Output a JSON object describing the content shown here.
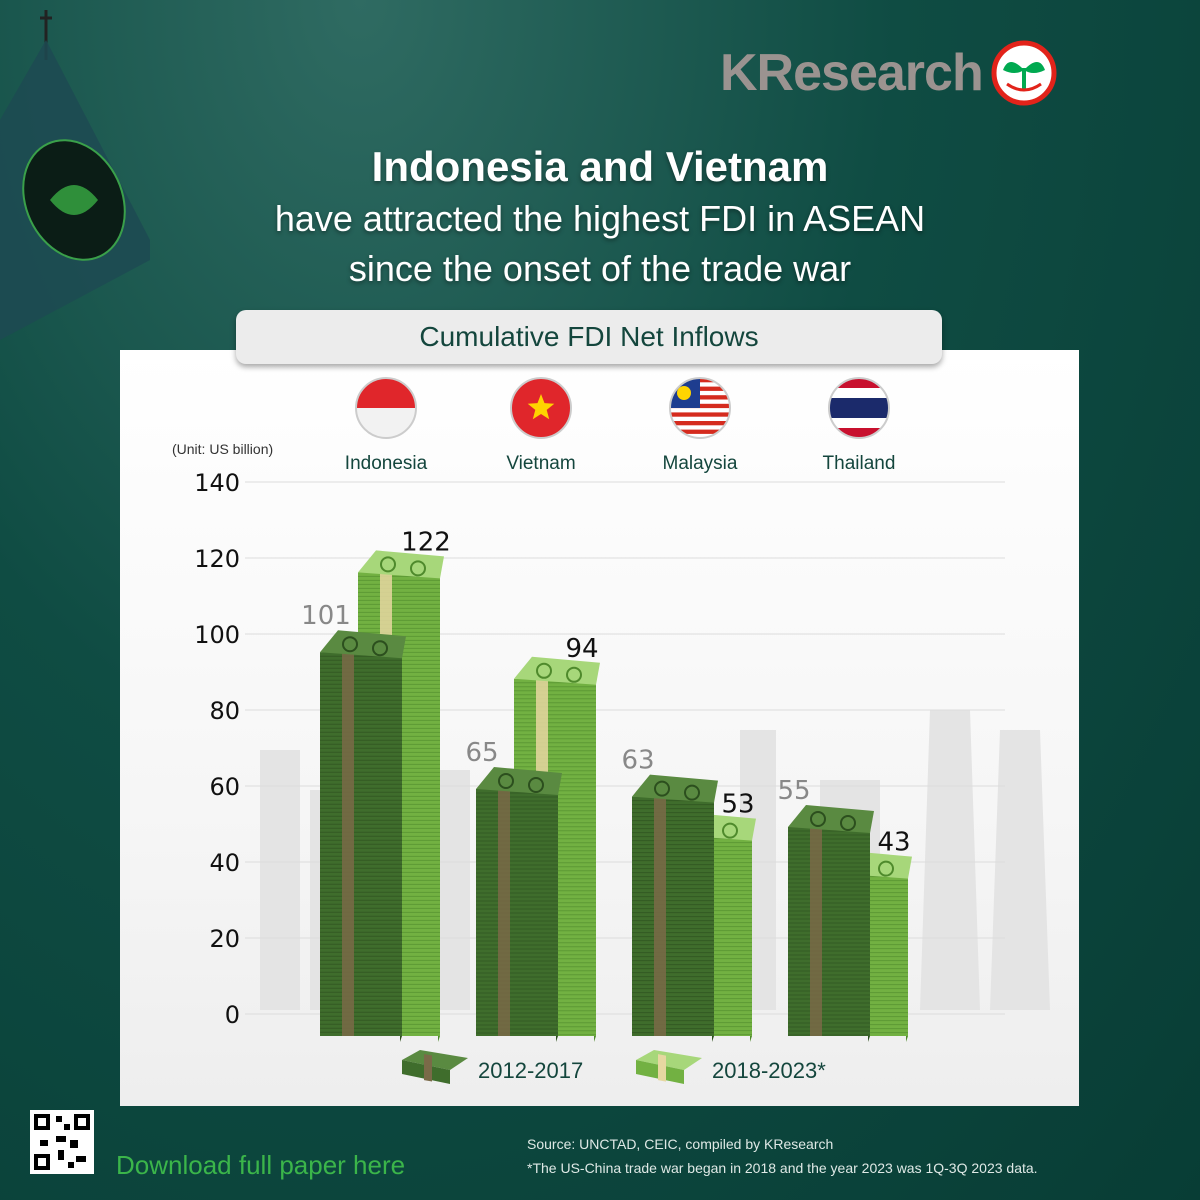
{
  "brand": {
    "name": "KResearch",
    "logo_icon": "kbank-sprout-icon",
    "brand_color": "#e2231a"
  },
  "headline": {
    "line1": "Indonesia and Vietnam",
    "line2": "have attracted the highest FDI in ASEAN",
    "line3": "since the onset of the trade war"
  },
  "footer": {
    "download_label": "Download full paper here",
    "source": "Source: UNCTAD, CEIC, compiled by KResearch",
    "note": "*The US-China trade war began in 2018 and the year 2023 was 1Q-3Q 2023 data."
  },
  "chart_data": {
    "type": "bar",
    "title": "Cumulative FDI Net Inflows",
    "unit_label": "(Unit: US billion)",
    "categories": [
      "Indonesia",
      "Vietnam",
      "Malaysia",
      "Thailand"
    ],
    "category_icons": [
      "indonesia-flag-icon",
      "vietnam-flag-icon",
      "malaysia-flag-icon",
      "thailand-flag-icon"
    ],
    "series": [
      {
        "name": "2012-2017",
        "values": [
          101,
          65,
          63,
          55
        ],
        "color": "#3d6b2b"
      },
      {
        "name": "2018-2023*",
        "values": [
          122,
          94,
          53,
          43
        ],
        "color": "#6fae3f"
      }
    ],
    "ylim": [
      0,
      140
    ],
    "yticks": [
      0,
      20,
      40,
      60,
      80,
      100,
      120,
      140
    ],
    "grid": true,
    "legend_position": "bottom"
  }
}
